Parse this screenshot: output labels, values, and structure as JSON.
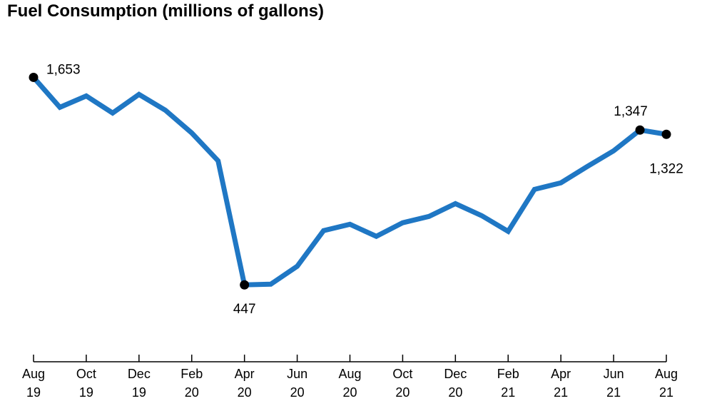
{
  "chart_data": {
    "type": "line",
    "title": "Fuel Consumption (millions of gallons)",
    "xlabel": "",
    "ylabel": "",
    "ylim": [
      0,
      1800
    ],
    "grid": false,
    "line_color": "#1f77c4",
    "x": [
      "Aug 19",
      "Sep 19",
      "Oct 19",
      "Nov 19",
      "Dec 19",
      "Jan 20",
      "Feb 20",
      "Mar 20",
      "Apr 20",
      "May 20",
      "Jun 20",
      "Jul 20",
      "Aug 20",
      "Sep 20",
      "Oct 20",
      "Nov 20",
      "Dec 20",
      "Jan 21",
      "Feb 21",
      "Mar 21",
      "Apr 21",
      "May 21",
      "Jun 21",
      "Jul 21",
      "Aug 21"
    ],
    "values": [
      1653,
      1479,
      1545,
      1446,
      1554,
      1462,
      1330,
      1168,
      447,
      451,
      555,
      762,
      799,
      729,
      808,
      845,
      919,
      849,
      758,
      1002,
      1040,
      1135,
      1226,
      1347,
      1322
    ],
    "tick_labels": [
      {
        "index": 0,
        "line1": "Aug",
        "line2": "19"
      },
      {
        "index": 2,
        "line1": "Oct",
        "line2": "19"
      },
      {
        "index": 4,
        "line1": "Dec",
        "line2": "19"
      },
      {
        "index": 6,
        "line1": "Feb",
        "line2": "20"
      },
      {
        "index": 8,
        "line1": "Apr",
        "line2": "20"
      },
      {
        "index": 10,
        "line1": "Jun",
        "line2": "20"
      },
      {
        "index": 12,
        "line1": "Aug",
        "line2": "20"
      },
      {
        "index": 14,
        "line1": "Oct",
        "line2": "20"
      },
      {
        "index": 16,
        "line1": "Dec",
        "line2": "20"
      },
      {
        "index": 18,
        "line1": "Feb",
        "line2": "21"
      },
      {
        "index": 20,
        "line1": "Apr",
        "line2": "21"
      },
      {
        "index": 22,
        "line1": "Jun",
        "line2": "21"
      },
      {
        "index": 24,
        "line1": "Aug",
        "line2": "21"
      }
    ],
    "annotations": [
      {
        "index": 0,
        "text": "1,653",
        "position": "right"
      },
      {
        "index": 8,
        "text": "447",
        "position": "below"
      },
      {
        "index": 23,
        "text": "1,347",
        "position": "above"
      },
      {
        "index": 24,
        "text": "1,322",
        "position": "below"
      }
    ]
  }
}
